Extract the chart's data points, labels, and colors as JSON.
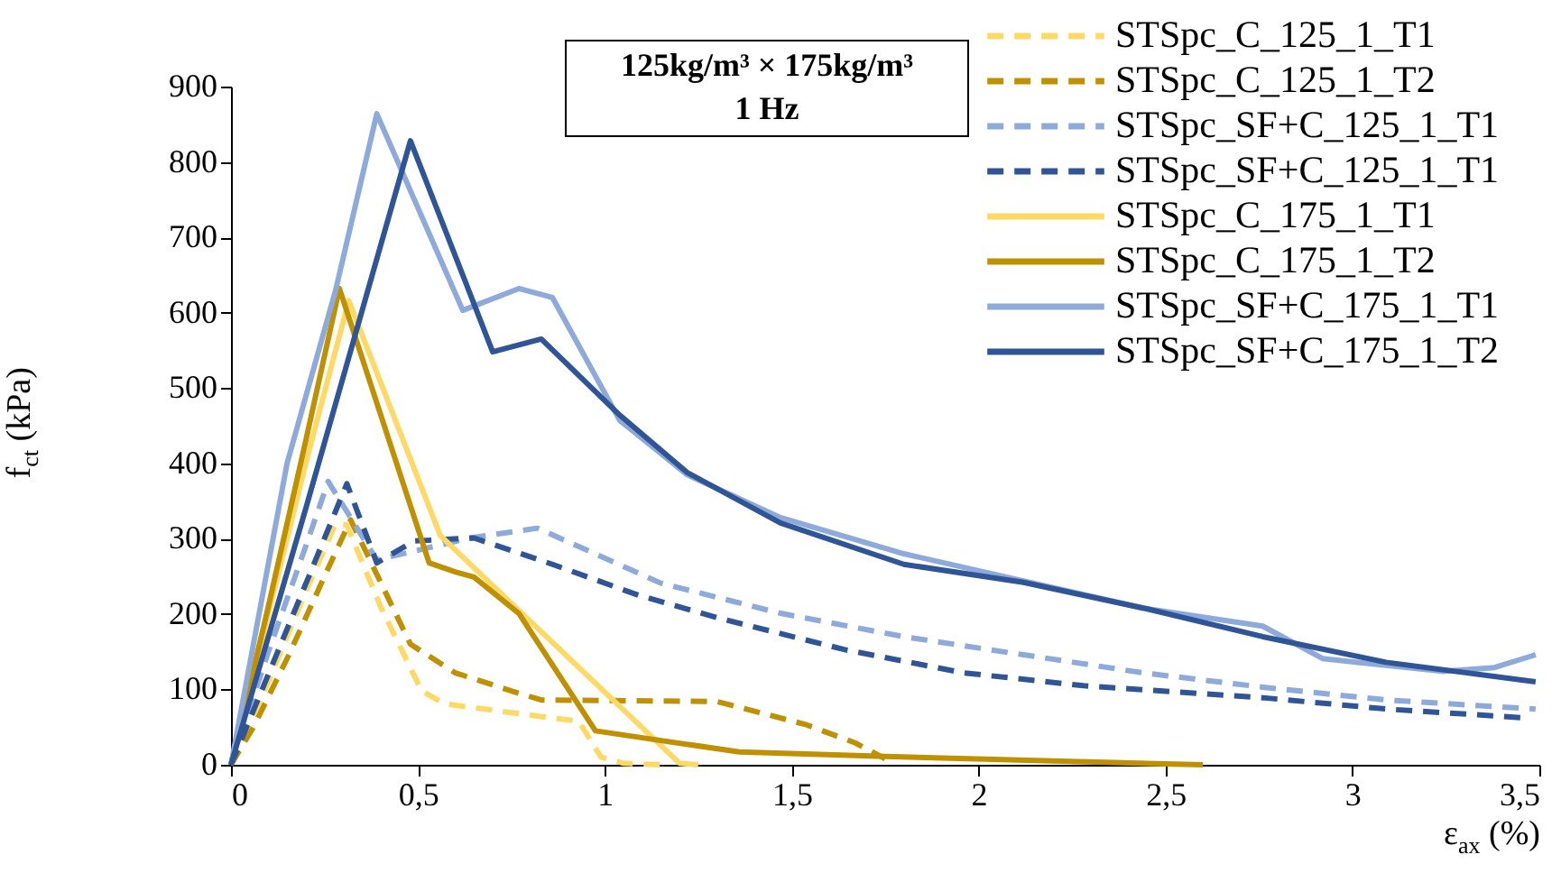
{
  "chart_data": {
    "type": "line",
    "xlabel": "ε$_{ax}$ (%)",
    "ylabel": "f$_{ct}$ (kPa)",
    "annotations": [
      "125kg/m³ × 175kg/m³",
      "1 Hz"
    ],
    "xlim": [
      0,
      3.5
    ],
    "ylim": [
      0,
      900
    ],
    "xticks": [
      0,
      {
        "value": 0.5,
        "label": "0,5"
      },
      1,
      {
        "value": 1.5,
        "label": "1,5"
      },
      2,
      {
        "value": 2.5,
        "label": "2,5"
      },
      3,
      {
        "value": 3.5,
        "label": "3,5"
      }
    ],
    "yticks": [
      0,
      100,
      200,
      300,
      400,
      500,
      600,
      700,
      800,
      900
    ],
    "legend": "top right",
    "grid": false,
    "marker": "none",
    "series": [
      {
        "name": "STSpc_C_125_1_T1",
        "color": "#ffd966",
        "line_style": "dashed",
        "x": [
          0,
          0.1,
          0.2,
          0.28,
          0.31,
          0.4,
          0.51,
          0.57,
          0.86,
          0.93,
          0.99,
          1.05,
          1.15
        ],
        "values": [
          0,
          110,
          230,
          320,
          318,
          210,
          98,
          81,
          62,
          58,
          10,
          2,
          0
        ]
      },
      {
        "name": "STSpc_C_125_1_T2",
        "color": "#bf9000",
        "line_style": "dashed",
        "x": [
          0,
          0.06,
          0.155,
          0.25,
          0.32,
          0.48,
          0.6,
          0.75,
          0.83,
          1.3,
          1.54,
          1.67,
          1.75
        ],
        "values": [
          0,
          50,
          146,
          250,
          325,
          160,
          122,
          98,
          86,
          84,
          53,
          29,
          8
        ]
      },
      {
        "name": "STSpc_SF+C_125_1_T1",
        "color": "#8eaadb",
        "line_style": "dashed",
        "x": [
          0,
          0.1,
          0.2,
          0.26,
          0.39,
          0.64,
          0.82,
          1.15,
          1.47,
          1.8,
          2.12,
          2.44,
          2.76,
          3.09,
          3.49
        ],
        "values": [
          0,
          150,
          290,
          376,
          272,
          301,
          314,
          241,
          201,
          170,
          146,
          122,
          103,
          86,
          74
        ]
      },
      {
        "name": "STSpc_SF+C_125_1_T1",
        "color": "#2f5597",
        "line_style": "dashed",
        "x": [
          0,
          0.1,
          0.2,
          0.31,
          0.39,
          0.49,
          0.65,
          0.86,
          1.09,
          1.31,
          1.64,
          1.96,
          2.28,
          2.76,
          3.09,
          3.47
        ],
        "values": [
          0,
          120,
          240,
          373,
          268,
          297,
          301,
          266,
          225,
          194,
          153,
          122,
          105,
          89,
          74,
          62
        ]
      },
      {
        "name": "STSpc_C_175_1_T1",
        "color": "#ffd966",
        "line_style": "solid",
        "x": [
          0,
          0.1,
          0.2,
          0.315,
          0.56,
          1.2,
          1.25
        ],
        "values": [
          0,
          200,
          400,
          616,
          304,
          2,
          0
        ]
      },
      {
        "name": "STSpc_C_175_1_T2",
        "color": "#bf9000",
        "line_style": "solid",
        "x": [
          0,
          0.1,
          0.2,
          0.29,
          0.53,
          0.6,
          0.65,
          0.77,
          0.975,
          1.36,
          1.75,
          2.2,
          2.6
        ],
        "values": [
          0,
          210,
          430,
          632,
          268,
          256,
          249,
          201,
          45,
          17,
          11,
          5,
          0
        ]
      },
      {
        "name": "STSpc_SF+C_175_1_T1",
        "color": "#8eaadb",
        "line_style": "solid",
        "x": [
          0,
          0.15,
          0.28,
          0.36,
          0.39,
          0.62,
          0.77,
          0.86,
          1.04,
          1.22,
          1.47,
          1.8,
          2.12,
          2.44,
          2.76,
          2.92,
          3.24,
          3.38,
          3.49
        ],
        "values": [
          0,
          400,
          630,
          800,
          864,
          603,
          632,
          620,
          457,
          385,
          328,
          280,
          244,
          208,
          184,
          141,
          124,
          129,
          146
        ]
      },
      {
        "name": "STSpc_SF+C_175_1_T2",
        "color": "#2f5597",
        "line_style": "solid",
        "x": [
          0,
          0.2,
          0.48,
          0.7,
          0.83,
          1.04,
          1.22,
          1.47,
          1.8,
          2.12,
          2.44,
          2.76,
          3.09,
          3.49
        ],
        "values": [
          0,
          340,
          828,
          548,
          565,
          464,
          388,
          321,
          266,
          242,
          208,
          170,
          136,
          110
        ]
      }
    ]
  }
}
